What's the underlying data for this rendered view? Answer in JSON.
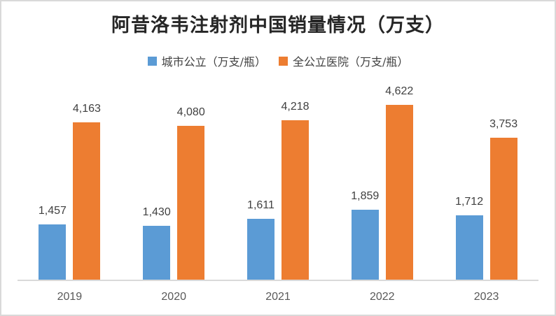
{
  "title": "阿昔洛韦注射剂中国销量情况（万支）",
  "legend": {
    "items": [
      {
        "label": "城市公立（万支/瓶）",
        "color": "#5B9BD5"
      },
      {
        "label": "全公立医院（万支/瓶）",
        "color": "#ED7D31"
      }
    ]
  },
  "chart_data": {
    "type": "bar",
    "title": "阿昔洛韦注射剂中国销量情况（万支）",
    "categories": [
      "2019",
      "2020",
      "2021",
      "2022",
      "2023"
    ],
    "series": [
      {
        "name": "城市公立（万支/瓶）",
        "color": "#5B9BD5",
        "values": [
          1457,
          1430,
          1611,
          1859,
          1712
        ],
        "data_labels": [
          "1,457",
          "1,430",
          "1,611",
          "1,859",
          "1,712"
        ]
      },
      {
        "name": "全公立医院（万支/瓶）",
        "color": "#ED7D31",
        "values": [
          4163,
          4080,
          4218,
          4622,
          3753
        ],
        "data_labels": [
          "4,163",
          "4,080",
          "4,218",
          "4,622",
          "3,753"
        ]
      }
    ],
    "xlabel": "",
    "ylabel": "",
    "ylim": [
      0,
      5000
    ],
    "grid": false,
    "legend_position": "top",
    "data_labels_visible": true
  },
  "colors": {
    "series_blue": "#5B9BD5",
    "series_orange": "#ED7D31",
    "title_text": "#262626",
    "data_label_text": "#404040",
    "axis_label_text": "#595959",
    "axis_line": "#D9D9D9",
    "frame_border": "#D9D9D9"
  }
}
